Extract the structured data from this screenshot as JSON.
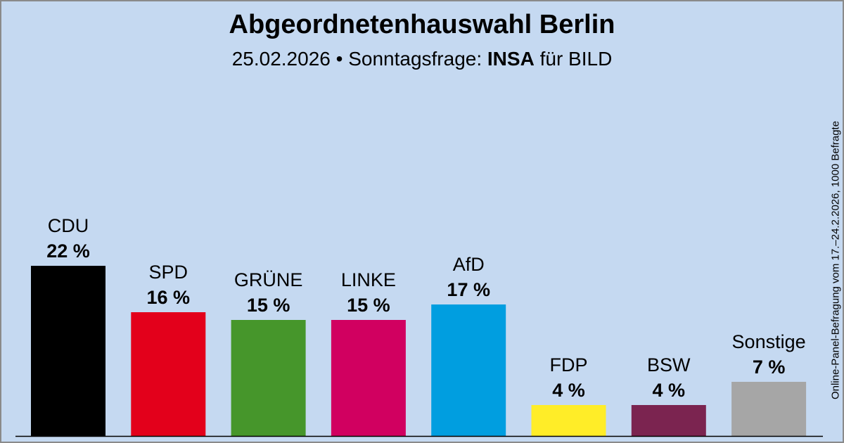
{
  "header": {
    "title": "Abgeordnetenhauswahl Berlin",
    "subtitle_prefix": "25.02.2026 • Sonntagsfrage:",
    "institute": "INSA",
    "client": "für BILD"
  },
  "side_note": "Online-Panel-Befragung vom 17.–24.2.2026, 1000 Befragte",
  "chart_data": {
    "type": "bar",
    "categories": [
      "CDU",
      "SPD",
      "GRÜNE",
      "LINKE",
      "AfD",
      "FDP",
      "BSW",
      "Sonstige"
    ],
    "values": [
      22,
      16,
      15,
      15,
      17,
      4,
      4,
      7
    ],
    "value_labels": [
      "22 %",
      "16 %",
      "15 %",
      "15 %",
      "17 %",
      "4 %",
      "4 %",
      "7 %"
    ],
    "colors": [
      "#000000",
      "#e3001b",
      "#46962b",
      "#d10060",
      "#009ee0",
      "#ffed28",
      "#7b2450",
      "#a6a6a6"
    ],
    "ylim": [
      0,
      22
    ],
    "grid": false
  }
}
